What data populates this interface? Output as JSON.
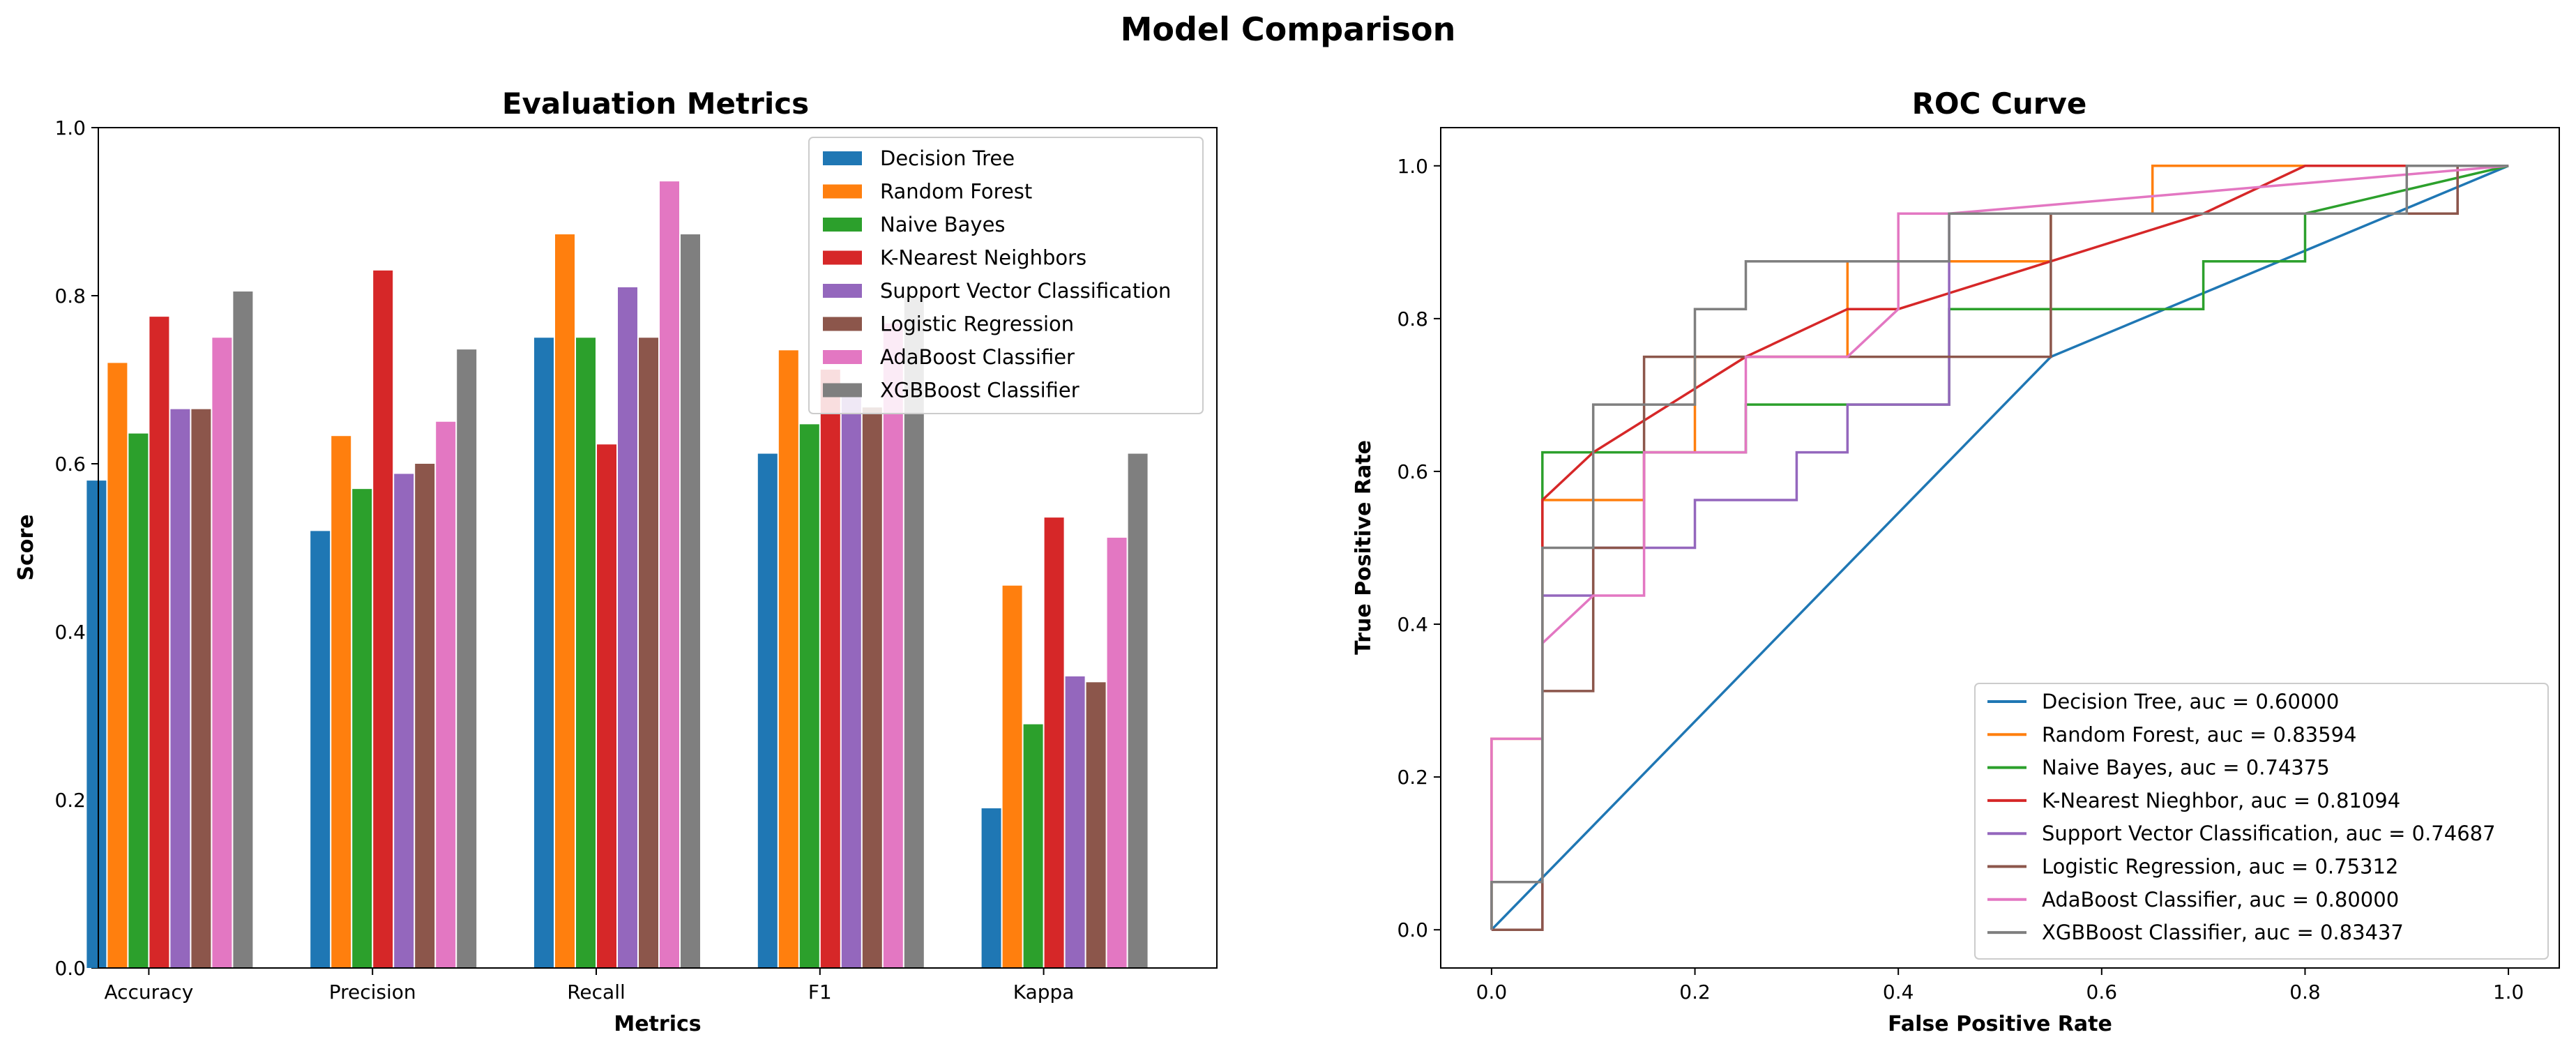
{
  "figure_title": "Model Comparison",
  "chart_data": [
    {
      "type": "bar",
      "title": "Evaluation Metrics",
      "xlabel": "Metrics",
      "ylabel": "Score",
      "ylim": [
        0,
        1.0
      ],
      "yticks": [
        0.0,
        0.2,
        0.4,
        0.6,
        0.8,
        1.0
      ],
      "ytick_labels": [
        "0.0",
        "0.2",
        "0.4",
        "0.6",
        "0.8",
        "1.0"
      ],
      "categories": [
        "Accuracy",
        "Precision",
        "Recall",
        "F1",
        "Kappa"
      ],
      "legend_loc": "upper right",
      "series": [
        {
          "name": "Decision Tree",
          "color": "#1f77b4",
          "values": [
            0.58,
            0.52,
            0.75,
            0.612,
            0.19
          ]
        },
        {
          "name": "Random Forest",
          "color": "#ff7f0e",
          "values": [
            0.72,
            0.633,
            0.873,
            0.735,
            0.455
          ]
        },
        {
          "name": "Naive Bayes",
          "color": "#2ca02c",
          "values": [
            0.636,
            0.57,
            0.75,
            0.647,
            0.29
          ]
        },
        {
          "name": "K-Nearest Neighbors",
          "color": "#d62728",
          "values": [
            0.775,
            0.83,
            0.623,
            0.712,
            0.536
          ]
        },
        {
          "name": "Support Vector Classification",
          "color": "#9467bd",
          "values": [
            0.665,
            0.588,
            0.81,
            0.684,
            0.347
          ]
        },
        {
          "name": "Logistic Regression",
          "color": "#8c564b",
          "values": [
            0.665,
            0.6,
            0.75,
            0.667,
            0.34
          ]
        },
        {
          "name": "AdaBoost Classifier",
          "color": "#e377c2",
          "values": [
            0.75,
            0.65,
            0.936,
            0.767,
            0.512
          ]
        },
        {
          "name": "XGBBoost Classifier",
          "color": "#7f7f7f",
          "values": [
            0.805,
            0.736,
            0.873,
            0.799,
            0.612
          ]
        }
      ]
    },
    {
      "type": "line",
      "title": "ROC Curve",
      "xlabel": "False Positive Rate",
      "ylabel": "True Positive Rate",
      "xlim": [
        -0.05,
        1.05
      ],
      "ylim": [
        -0.05,
        1.05
      ],
      "xticks": [
        0.0,
        0.2,
        0.4,
        0.6,
        0.8,
        1.0
      ],
      "xtick_labels": [
        "0.0",
        "0.2",
        "0.4",
        "0.6",
        "0.8",
        "1.0"
      ],
      "yticks": [
        0.0,
        0.2,
        0.4,
        0.6,
        0.8,
        1.0
      ],
      "ytick_labels": [
        "0.0",
        "0.2",
        "0.4",
        "0.6",
        "0.8",
        "1.0"
      ],
      "legend_loc": "lower right",
      "series": [
        {
          "name": "Decision Tree, auc = 0.60000",
          "color": "#1f77b4",
          "x": [
            0,
            0.55,
            1.0
          ],
          "y": [
            0,
            0.75,
            1.0
          ]
        },
        {
          "name": "Random Forest, auc = 0.83594",
          "color": "#ff7f0e",
          "x": [
            0,
            0,
            0.05,
            0.05,
            0.15,
            0.15,
            0.2,
            0.2,
            0.35,
            0.35,
            0.55,
            0.55,
            0.6,
            0.6,
            0.65,
            0.65,
            1.0
          ],
          "y": [
            0,
            0.25,
            0.25,
            0.5625,
            0.5625,
            0.625,
            0.625,
            0.75,
            0.75,
            0.875,
            0.875,
            0.9375,
            0.9375,
            0.9375,
            0.9375,
            1.0,
            1.0
          ]
        },
        {
          "name": "Naive Bayes, auc = 0.74375",
          "color": "#2ca02c",
          "x": [
            0,
            0,
            0.05,
            0.05,
            0.15,
            0.15,
            0.25,
            0.25,
            0.45,
            0.45,
            0.7,
            0.7,
            0.8,
            0.8,
            1.0
          ],
          "y": [
            0,
            0.0625,
            0.0625,
            0.625,
            0.625,
            0.625,
            0.625,
            0.6875,
            0.6875,
            0.8125,
            0.8125,
            0.875,
            0.875,
            0.9375,
            1.0
          ]
        },
        {
          "name": "K-Nearest Nieghbor, auc = 0.81094",
          "color": "#d62728",
          "x": [
            0,
            0.05,
            0.05,
            0.1,
            0.25,
            0.35,
            0.4,
            0.55,
            0.7,
            0.8,
            1.0
          ],
          "y": [
            0,
            0.0,
            0.5625,
            0.625,
            0.75,
            0.8125,
            0.8125,
            0.875,
            0.9375,
            1.0,
            1.0
          ]
        },
        {
          "name": "Support Vector Classification, auc = 0.74687",
          "color": "#9467bd",
          "x": [
            0,
            0.05,
            0.05,
            0.1,
            0.1,
            0.15,
            0.15,
            0.2,
            0.2,
            0.3,
            0.3,
            0.35,
            0.35,
            0.45,
            0.45,
            0.55,
            0.55,
            0.95,
            0.95,
            1.0
          ],
          "y": [
            0,
            0,
            0.4375,
            0.4375,
            0.5,
            0.5,
            0.5,
            0.5,
            0.5625,
            0.5625,
            0.625,
            0.625,
            0.6875,
            0.6875,
            0.9375,
            0.9375,
            0.9375,
            0.9375,
            1.0,
            1.0
          ]
        },
        {
          "name": "Logistic Regression, auc = 0.75312",
          "color": "#8c564b",
          "x": [
            0,
            0.05,
            0.05,
            0.1,
            0.1,
            0.15,
            0.15,
            0.45,
            0.45,
            0.55,
            0.55,
            0.9,
            0.9,
            0.95,
            0.95,
            1.0
          ],
          "y": [
            0,
            0,
            0.3125,
            0.3125,
            0.5,
            0.5,
            0.75,
            0.75,
            0.75,
            0.75,
            0.9375,
            0.9375,
            0.9375,
            0.9375,
            1.0,
            1.0
          ]
        },
        {
          "name": "AdaBoost Classifier, auc = 0.80000",
          "color": "#e377c2",
          "x": [
            0,
            0,
            0.05,
            0.05,
            0.1,
            0.1,
            0.15,
            0.15,
            0.25,
            0.25,
            0.35,
            0.35,
            0.4,
            0.4,
            0.45,
            0.45,
            1.0
          ],
          "y": [
            0,
            0.25,
            0.25,
            0.375,
            0.4375,
            0.4375,
            0.4375,
            0.625,
            0.625,
            0.75,
            0.75,
            0.75,
            0.8125,
            0.9375,
            0.9375,
            0.9375,
            1.0
          ]
        },
        {
          "name": "XGBBoost Classifier, auc = 0.83437",
          "color": "#7f7f7f",
          "x": [
            0,
            0,
            0.05,
            0.05,
            0.1,
            0.1,
            0.2,
            0.2,
            0.25,
            0.25,
            0.45,
            0.45,
            0.9,
            0.9,
            1.0
          ],
          "y": [
            0,
            0.0625,
            0.0625,
            0.5,
            0.5,
            0.6875,
            0.6875,
            0.8125,
            0.8125,
            0.875,
            0.875,
            0.9375,
            0.9375,
            1.0,
            1.0
          ]
        }
      ]
    }
  ]
}
